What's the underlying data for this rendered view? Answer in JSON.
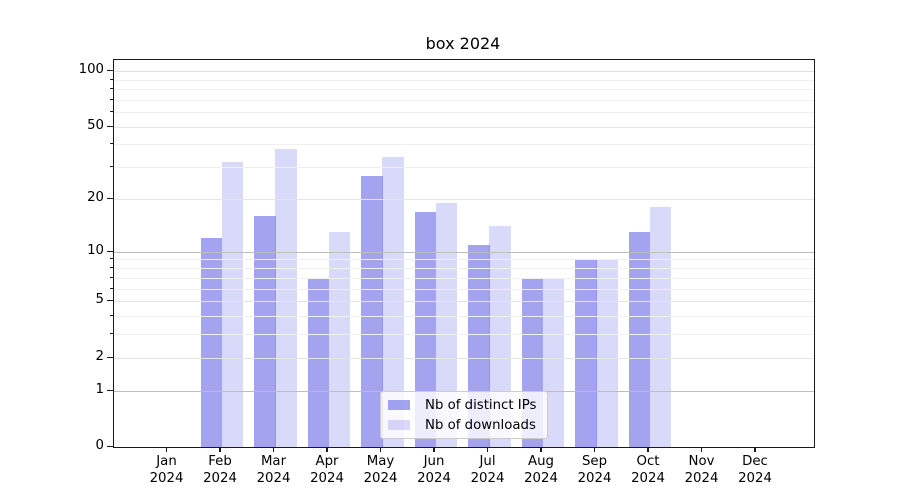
{
  "chart_data": {
    "type": "bar",
    "title": "box 2024",
    "categories": [
      "Jan 2024",
      "Feb 2024",
      "Mar 2024",
      "Apr 2024",
      "May 2024",
      "Jun 2024",
      "Jul 2024",
      "Aug 2024",
      "Sep 2024",
      "Oct 2024",
      "Nov 2024",
      "Dec 2024"
    ],
    "series": [
      {
        "name": "Nb of distinct IPs",
        "values": [
          0,
          12,
          16,
          7,
          27,
          17,
          11,
          7,
          9,
          13,
          0,
          0
        ],
        "fill": "rgba(102,102,230,0.6)",
        "apparent_color": "#a3a3f0"
      },
      {
        "name": "Nb of downloads",
        "values": [
          0,
          32,
          38,
          13,
          34,
          19,
          14,
          7,
          9,
          18,
          0,
          0
        ],
        "fill": "rgba(102,102,230,0.25)",
        "apparent_color": "#d9d9f9"
      }
    ],
    "xlabel": "",
    "ylabel": "",
    "yscale": "log10(value+1)",
    "yticks": [
      0,
      1,
      2,
      5,
      10,
      20,
      50,
      100
    ],
    "ylim": [
      0,
      114
    ],
    "grid": true,
    "legend_position": "lower center"
  }
}
